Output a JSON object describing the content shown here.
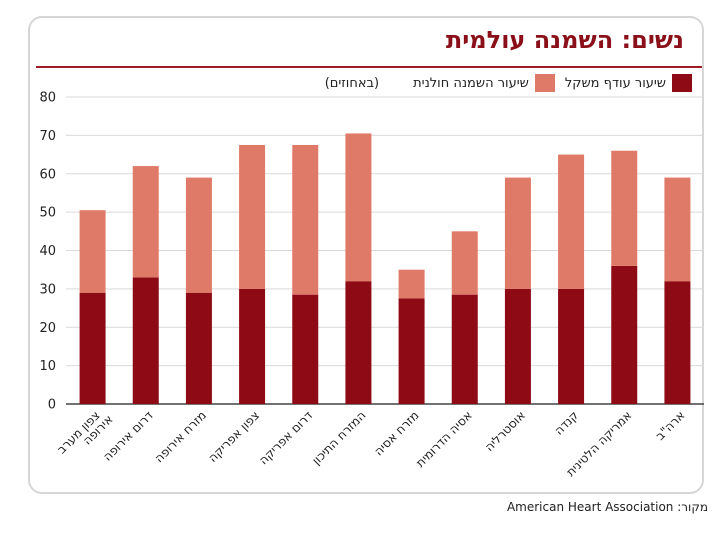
{
  "title": "נשים: השמנה עולמית",
  "legend": {
    "overweight_label": "שיעור עודף משקל",
    "obesity_label": "שיעור השמנה חולנית",
    "unit": "(באחוזים)"
  },
  "source": "מקור: American Heart Association",
  "colors": {
    "overweight": "#8e0a14",
    "obesity": "#e07a68",
    "grid": "#d9d9d9",
    "axis": "#444444",
    "title": "#8b0f19"
  },
  "chart_data": {
    "type": "bar",
    "stacked": true,
    "title": "נשים: השמנה עולמית",
    "ylabel": "(באחוזים)",
    "ylim": [
      0,
      80
    ],
    "yticks": [
      0,
      10,
      20,
      30,
      40,
      50,
      60,
      70,
      80
    ],
    "grid": true,
    "legend_position": "top",
    "categories": [
      "צפון מערב אירופה",
      "דרום אירופה",
      "מזרח אירופה",
      "צפון אפריקה",
      "דרום אפריקה",
      "המזרח התיכון",
      "מזרח אסיה",
      "אסיה הדרומית",
      "אוסטרליה",
      "קנדה",
      "אמריקה הלטינית",
      "ארה\"ב"
    ],
    "series": [
      {
        "name": "שיעור עודף משקל",
        "values": [
          29,
          33,
          29,
          30,
          28.5,
          32,
          27.5,
          28.5,
          30,
          30,
          36,
          32
        ]
      },
      {
        "name": "שיעור השמנה חולנית",
        "values": [
          21.5,
          29,
          30,
          37.5,
          39,
          38.5,
          7.5,
          16.5,
          29,
          35,
          30,
          27
        ]
      }
    ]
  }
}
